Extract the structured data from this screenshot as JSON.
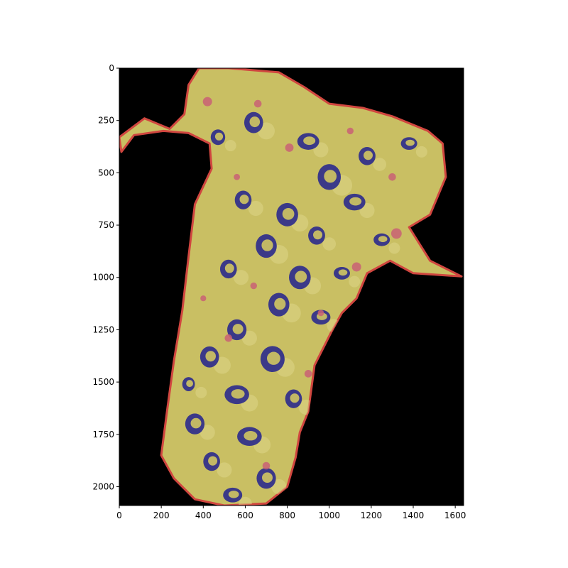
{
  "chart_data": {
    "type": "heatmap",
    "title": "",
    "xlabel": "",
    "ylabel": "",
    "xlim": [
      0,
      1640
    ],
    "ylim": [
      2090,
      0
    ],
    "y_inverted": true,
    "grid": false,
    "legend": "none",
    "x_ticks": [
      0,
      200,
      400,
      600,
      800,
      1000,
      1200,
      1400,
      1600
    ],
    "x_tick_labels": [
      "0",
      "200",
      "400",
      "600",
      "800",
      "1000",
      "1200",
      "1400",
      "1600"
    ],
    "y_ticks": [
      0,
      250,
      500,
      750,
      1000,
      1250,
      1500,
      1750,
      2000
    ],
    "y_tick_labels": [
      "0",
      "250",
      "500",
      "750",
      "1000",
      "1250",
      "1500",
      "1750",
      "2000"
    ],
    "colors": {
      "background": "#000000",
      "tissue": "#c9bf63",
      "tissue_light": "#ddd588",
      "blue_region": "#2b2a8c",
      "red_region": "#c96074",
      "edge_red": "#d0463f"
    },
    "tissue_outline": [
      [
        380,
        0
      ],
      [
        520,
        0
      ],
      [
        760,
        20
      ],
      [
        880,
        90
      ],
      [
        1000,
        170
      ],
      [
        1160,
        190
      ],
      [
        1300,
        230
      ],
      [
        1470,
        300
      ],
      [
        1540,
        360
      ],
      [
        1555,
        520
      ],
      [
        1480,
        700
      ],
      [
        1380,
        760
      ],
      [
        1480,
        920
      ],
      [
        1630,
        995
      ],
      [
        1400,
        980
      ],
      [
        1290,
        920
      ],
      [
        1180,
        980
      ],
      [
        1130,
        1100
      ],
      [
        1060,
        1170
      ],
      [
        1010,
        1260
      ],
      [
        930,
        1420
      ],
      [
        900,
        1640
      ],
      [
        860,
        1740
      ],
      [
        840,
        1860
      ],
      [
        800,
        2000
      ],
      [
        700,
        2080
      ],
      [
        500,
        2090
      ],
      [
        360,
        2060
      ],
      [
        260,
        1960
      ],
      [
        200,
        1850
      ],
      [
        230,
        1620
      ],
      [
        260,
        1400
      ],
      [
        300,
        1160
      ],
      [
        330,
        900
      ],
      [
        360,
        650
      ],
      [
        440,
        480
      ],
      [
        430,
        360
      ],
      [
        330,
        310
      ],
      [
        210,
        300
      ],
      [
        70,
        320
      ],
      [
        10,
        400
      ],
      [
        0,
        330
      ],
      [
        120,
        240
      ],
      [
        240,
        290
      ],
      [
        310,
        220
      ],
      [
        330,
        80
      ]
    ],
    "blue_regions": [
      {
        "x": 640,
        "y": 260,
        "r": 45
      },
      {
        "x": 470,
        "y": 330,
        "r": 30
      },
      {
        "x": 900,
        "y": 350,
        "r": 40
      },
      {
        "x": 1000,
        "y": 520,
        "r": 55
      },
      {
        "x": 1180,
        "y": 420,
        "r": 35
      },
      {
        "x": 1380,
        "y": 360,
        "r": 30
      },
      {
        "x": 590,
        "y": 630,
        "r": 40
      },
      {
        "x": 800,
        "y": 700,
        "r": 45
      },
      {
        "x": 1120,
        "y": 640,
        "r": 40
      },
      {
        "x": 700,
        "y": 850,
        "r": 50
      },
      {
        "x": 940,
        "y": 800,
        "r": 35
      },
      {
        "x": 1250,
        "y": 820,
        "r": 30
      },
      {
        "x": 520,
        "y": 960,
        "r": 40
      },
      {
        "x": 860,
        "y": 1000,
        "r": 45
      },
      {
        "x": 1060,
        "y": 980,
        "r": 30
      },
      {
        "x": 760,
        "y": 1130,
        "r": 50
      },
      {
        "x": 560,
        "y": 1250,
        "r": 40
      },
      {
        "x": 960,
        "y": 1190,
        "r": 35
      },
      {
        "x": 430,
        "y": 1380,
        "r": 45
      },
      {
        "x": 730,
        "y": 1390,
        "r": 50
      },
      {
        "x": 560,
        "y": 1560,
        "r": 45
      },
      {
        "x": 830,
        "y": 1580,
        "r": 40
      },
      {
        "x": 360,
        "y": 1700,
        "r": 40
      },
      {
        "x": 620,
        "y": 1760,
        "r": 45
      },
      {
        "x": 440,
        "y": 1880,
        "r": 40
      },
      {
        "x": 700,
        "y": 1960,
        "r": 40
      },
      {
        "x": 540,
        "y": 2040,
        "r": 35
      },
      {
        "x": 330,
        "y": 1510,
        "r": 30
      }
    ],
    "red_regions": [
      {
        "x": 420,
        "y": 160,
        "r": 22
      },
      {
        "x": 660,
        "y": 170,
        "r": 18
      },
      {
        "x": 810,
        "y": 380,
        "r": 20
      },
      {
        "x": 1100,
        "y": 300,
        "r": 16
      },
      {
        "x": 1300,
        "y": 520,
        "r": 18
      },
      {
        "x": 560,
        "y": 520,
        "r": 15
      },
      {
        "x": 1320,
        "y": 790,
        "r": 25
      },
      {
        "x": 1130,
        "y": 950,
        "r": 22
      },
      {
        "x": 640,
        "y": 1040,
        "r": 16
      },
      {
        "x": 960,
        "y": 1170,
        "r": 15
      },
      {
        "x": 520,
        "y": 1290,
        "r": 18
      },
      {
        "x": 900,
        "y": 1460,
        "r": 18
      },
      {
        "x": 980,
        "y": 1620,
        "r": 20
      },
      {
        "x": 700,
        "y": 1900,
        "r": 18
      },
      {
        "x": 400,
        "y": 1100,
        "r": 14
      }
    ]
  }
}
